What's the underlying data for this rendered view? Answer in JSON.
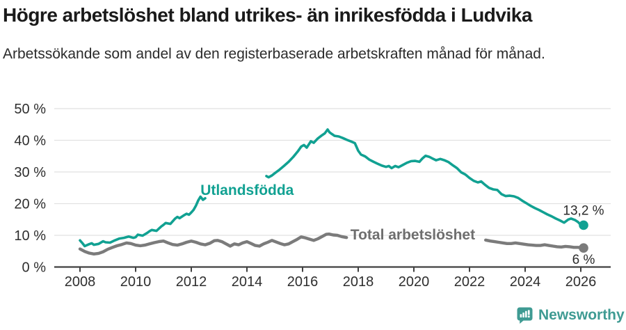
{
  "header": {
    "title": "Högre arbetslöshet bland utrikes- än inrikesfödda i Ludvika",
    "subtitle": "Arbetssökande som andel av den registerbaserade arbetskraften månad för månad."
  },
  "footer": {
    "brand": "Newsworthy",
    "brand_color": "#3F9B93",
    "logo_icon": "newsworthy-speech-bubble-bar-chart-icon"
  },
  "colors": {
    "teal_series": "#11A192",
    "gray_series": "#7B7B7B",
    "gray_label": "#6E6E6E",
    "grid": "#E1E1E1",
    "axis": "#404040",
    "tick_text": "#2E2E2E",
    "value_text": "#2B2B2B"
  },
  "chart_data": {
    "type": "line",
    "title": "Högre arbetslöshet bland utrikes- än inrikesfödda i Ludvika",
    "ylabel": "",
    "xlabel": "",
    "x_axis": {
      "ticks": [
        2008,
        2010,
        2012,
        2014,
        2016,
        2018,
        2020,
        2022,
        2024,
        2026
      ],
      "tick_labels": [
        "2008",
        "2010",
        "2012",
        "2014",
        "2016",
        "2018",
        "2020",
        "2022",
        "2024",
        "2026"
      ],
      "range": [
        2007.1,
        2027.1
      ],
      "grid": false
    },
    "y_axis": {
      "tick_values": [
        0,
        10,
        20,
        30,
        40,
        50
      ],
      "tick_labels": [
        "0 %",
        "10 %",
        "20 %",
        "30 %",
        "40 %",
        "50 %"
      ],
      "range": [
        0,
        50
      ],
      "grid": true
    },
    "series": [
      {
        "id": "total",
        "name": "Total arbetslöshet",
        "color": "#7B7B7B",
        "width": 4.4,
        "end_label": "6 %",
        "end_value": 6.0,
        "end_label_position": "below",
        "segments": [
          [
            [
              2008.0,
              5.7
            ],
            [
              2008.17,
              4.9
            ],
            [
              2008.33,
              4.4
            ],
            [
              2008.5,
              4.1
            ],
            [
              2008.67,
              4.3
            ],
            [
              2008.83,
              4.8
            ],
            [
              2009.0,
              5.6
            ],
            [
              2009.17,
              6.2
            ],
            [
              2009.33,
              6.7
            ],
            [
              2009.5,
              7.1
            ],
            [
              2009.67,
              7.6
            ],
            [
              2009.83,
              7.4
            ],
            [
              2010.0,
              6.9
            ],
            [
              2010.17,
              6.7
            ],
            [
              2010.33,
              6.9
            ],
            [
              2010.5,
              7.3
            ],
            [
              2010.67,
              7.7
            ],
            [
              2010.83,
              8.0
            ],
            [
              2011.0,
              8.2
            ],
            [
              2011.17,
              7.6
            ],
            [
              2011.33,
              7.1
            ],
            [
              2011.5,
              6.9
            ],
            [
              2011.67,
              7.3
            ],
            [
              2011.83,
              7.8
            ],
            [
              2012.0,
              8.2
            ],
            [
              2012.17,
              7.8
            ],
            [
              2012.33,
              7.3
            ],
            [
              2012.5,
              7.0
            ],
            [
              2012.67,
              7.5
            ],
            [
              2012.83,
              8.3
            ],
            [
              2012.95,
              8.4
            ],
            [
              2013.1,
              8.0
            ],
            [
              2013.25,
              7.3
            ],
            [
              2013.4,
              6.6
            ],
            [
              2013.55,
              7.3
            ],
            [
              2013.7,
              7.0
            ],
            [
              2013.85,
              7.6
            ],
            [
              2014.0,
              8.0
            ],
            [
              2014.15,
              7.4
            ],
            [
              2014.3,
              6.8
            ],
            [
              2014.45,
              6.6
            ],
            [
              2014.6,
              7.3
            ],
            [
              2014.75,
              7.8
            ],
            [
              2014.9,
              8.4
            ],
            [
              2015.05,
              7.9
            ],
            [
              2015.2,
              7.4
            ],
            [
              2015.35,
              7.0
            ],
            [
              2015.5,
              7.3
            ],
            [
              2015.65,
              8.0
            ],
            [
              2015.8,
              8.7
            ],
            [
              2015.95,
              9.5
            ],
            [
              2016.1,
              9.2
            ],
            [
              2016.25,
              8.8
            ],
            [
              2016.4,
              8.4
            ],
            [
              2016.55,
              8.9
            ],
            [
              2016.7,
              9.6
            ],
            [
              2016.85,
              10.3
            ],
            [
              2016.95,
              10.4
            ],
            [
              2017.1,
              10.1
            ],
            [
              2017.25,
              10.0
            ],
            [
              2017.4,
              9.6
            ],
            [
              2017.58,
              9.3
            ]
          ],
          [
            [
              2022.58,
              8.5
            ],
            [
              2022.75,
              8.2
            ],
            [
              2022.9,
              8.0
            ],
            [
              2023.05,
              7.8
            ],
            [
              2023.2,
              7.6
            ],
            [
              2023.35,
              7.4
            ],
            [
              2023.5,
              7.4
            ],
            [
              2023.65,
              7.6
            ],
            [
              2023.8,
              7.4
            ],
            [
              2023.95,
              7.2
            ],
            [
              2024.1,
              7.0
            ],
            [
              2024.25,
              6.9
            ],
            [
              2024.4,
              6.8
            ],
            [
              2024.55,
              6.8
            ],
            [
              2024.7,
              7.0
            ],
            [
              2024.85,
              6.8
            ],
            [
              2025.0,
              6.6
            ],
            [
              2025.15,
              6.4
            ],
            [
              2025.3,
              6.3
            ],
            [
              2025.45,
              6.5
            ],
            [
              2025.6,
              6.4
            ],
            [
              2025.75,
              6.2
            ],
            [
              2025.9,
              6.2
            ],
            [
              2026.0,
              6.1
            ],
            [
              2026.1,
              6.0
            ]
          ]
        ]
      },
      {
        "id": "utlandsfodda",
        "name": "Utlandsfödda",
        "color": "#11A192",
        "width": 3.6,
        "end_label": "13,2 %",
        "end_value": 13.2,
        "end_label_position": "above",
        "segments": [
          [
            [
              2008.0,
              8.4
            ],
            [
              2008.08,
              7.6
            ],
            [
              2008.17,
              6.6
            ],
            [
              2008.33,
              7.2
            ],
            [
              2008.42,
              7.5
            ],
            [
              2008.5,
              7.0
            ],
            [
              2008.67,
              7.3
            ],
            [
              2008.83,
              8.1
            ],
            [
              2008.92,
              7.8
            ],
            [
              2009.08,
              7.7
            ],
            [
              2009.25,
              8.4
            ],
            [
              2009.42,
              9.0
            ],
            [
              2009.58,
              9.2
            ],
            [
              2009.75,
              9.6
            ],
            [
              2009.92,
              9.2
            ],
            [
              2010.0,
              9.4
            ],
            [
              2010.08,
              10.2
            ],
            [
              2010.25,
              9.9
            ],
            [
              2010.42,
              10.8
            ],
            [
              2010.5,
              11.3
            ],
            [
              2010.58,
              11.7
            ],
            [
              2010.75,
              11.4
            ],
            [
              2010.92,
              12.8
            ],
            [
              2011.0,
              13.3
            ],
            [
              2011.08,
              13.9
            ],
            [
              2011.25,
              13.6
            ],
            [
              2011.42,
              15.3
            ],
            [
              2011.5,
              15.8
            ],
            [
              2011.58,
              15.4
            ],
            [
              2011.75,
              16.4
            ],
            [
              2011.83,
              16.8
            ],
            [
              2011.92,
              16.5
            ],
            [
              2012.0,
              17.2
            ],
            [
              2012.08,
              18.0
            ],
            [
              2012.17,
              19.4
            ],
            [
              2012.25,
              21.0
            ],
            [
              2012.33,
              22.2
            ],
            [
              2012.42,
              21.2
            ],
            [
              2012.5,
              21.7
            ]
          ],
          [
            [
              2014.7,
              28.7
            ],
            [
              2014.78,
              28.3
            ],
            [
              2014.9,
              28.9
            ],
            [
              2015.0,
              29.6
            ],
            [
              2015.17,
              30.7
            ],
            [
              2015.33,
              31.9
            ],
            [
              2015.5,
              33.2
            ],
            [
              2015.67,
              34.8
            ],
            [
              2015.83,
              36.5
            ],
            [
              2015.95,
              38.0
            ],
            [
              2016.05,
              38.5
            ],
            [
              2016.15,
              37.7
            ],
            [
              2016.3,
              39.7
            ],
            [
              2016.4,
              39.2
            ],
            [
              2016.55,
              40.6
            ],
            [
              2016.7,
              41.6
            ],
            [
              2016.8,
              42.2
            ],
            [
              2016.9,
              43.4
            ],
            [
              2016.97,
              42.5
            ],
            [
              2017.05,
              42.0
            ],
            [
              2017.15,
              41.4
            ],
            [
              2017.3,
              41.2
            ],
            [
              2017.45,
              40.7
            ],
            [
              2017.6,
              40.1
            ],
            [
              2017.75,
              39.6
            ],
            [
              2017.88,
              39.1
            ],
            [
              2018.0,
              36.7
            ],
            [
              2018.1,
              35.5
            ],
            [
              2018.25,
              34.9
            ],
            [
              2018.4,
              33.9
            ],
            [
              2018.55,
              33.2
            ],
            [
              2018.7,
              32.6
            ],
            [
              2018.85,
              32.0
            ],
            [
              2019.0,
              31.6
            ],
            [
              2019.1,
              31.9
            ],
            [
              2019.2,
              31.2
            ],
            [
              2019.33,
              31.9
            ],
            [
              2019.45,
              31.5
            ],
            [
              2019.6,
              32.2
            ],
            [
              2019.75,
              32.9
            ],
            [
              2019.9,
              33.4
            ],
            [
              2020.05,
              33.5
            ],
            [
              2020.2,
              33.2
            ],
            [
              2020.3,
              34.2
            ],
            [
              2020.42,
              35.1
            ],
            [
              2020.55,
              34.8
            ],
            [
              2020.7,
              34.1
            ],
            [
              2020.8,
              33.7
            ],
            [
              2020.95,
              34.1
            ],
            [
              2021.1,
              33.7
            ],
            [
              2021.25,
              33.1
            ],
            [
              2021.4,
              32.1
            ],
            [
              2021.55,
              31.2
            ],
            [
              2021.7,
              29.9
            ],
            [
              2021.85,
              29.2
            ],
            [
              2022.0,
              28.1
            ],
            [
              2022.15,
              27.2
            ],
            [
              2022.3,
              26.7
            ],
            [
              2022.42,
              27.0
            ],
            [
              2022.55,
              26.0
            ],
            [
              2022.7,
              25.0
            ],
            [
              2022.85,
              24.5
            ],
            [
              2023.0,
              24.3
            ],
            [
              2023.15,
              23.0
            ],
            [
              2023.3,
              22.4
            ],
            [
              2023.45,
              22.5
            ],
            [
              2023.6,
              22.3
            ],
            [
              2023.75,
              21.8
            ],
            [
              2023.9,
              20.9
            ],
            [
              2024.05,
              20.1
            ],
            [
              2024.2,
              19.3
            ],
            [
              2024.35,
              18.6
            ],
            [
              2024.5,
              18.0
            ],
            [
              2024.65,
              17.3
            ],
            [
              2024.8,
              16.6
            ],
            [
              2024.95,
              16.0
            ],
            [
              2025.1,
              15.3
            ],
            [
              2025.25,
              14.7
            ],
            [
              2025.4,
              14.0
            ],
            [
              2025.55,
              15.0
            ],
            [
              2025.65,
              15.3
            ],
            [
              2025.8,
              14.8
            ],
            [
              2025.9,
              14.2
            ],
            [
              2026.0,
              13.3
            ],
            [
              2026.1,
              13.2
            ]
          ]
        ]
      }
    ],
    "series_labels": [
      {
        "id": "utlandsfodda",
        "text": "Utlandsfödda",
        "color": "#11A192",
        "year": 2012.33,
        "pct_baseline": 22.75,
        "anchor": "start"
      },
      {
        "id": "total",
        "text": "Total arbetslöshet",
        "color": "#6E6E6E",
        "year": 2017.72,
        "pct_baseline": 8.68,
        "anchor": "start"
      }
    ],
    "legend_position": "inline-labels"
  }
}
